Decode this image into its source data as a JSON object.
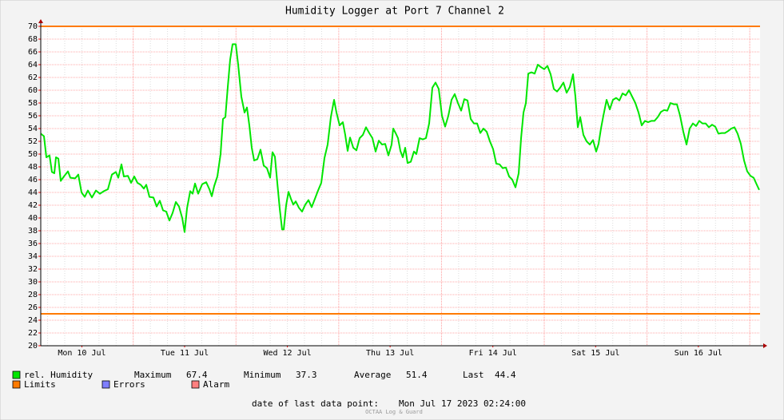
{
  "chart_data": {
    "type": "line",
    "title": "Humidity Logger at Port 7 Channel 2",
    "xlim": [
      2.4,
      170.4
    ],
    "xticks": [
      {
        "value": 12,
        "label": "Mon 10 Jul"
      },
      {
        "value": 36,
        "label": "Tue 11 Jul"
      },
      {
        "value": 60,
        "label": "Wed 12 Jul"
      },
      {
        "value": 84,
        "label": "Thu 13 Jul"
      },
      {
        "value": 108,
        "label": "Fri 14 Jul"
      },
      {
        "value": 132,
        "label": "Sat 15 Jul"
      },
      {
        "value": 156,
        "label": "Sun 16 Jul"
      }
    ],
    "xgrid_step": 24,
    "xminor_step": 4,
    "ylim": [
      20,
      70
    ],
    "yticks": [
      20,
      22,
      24,
      26,
      28,
      30,
      32,
      34,
      36,
      38,
      40,
      42,
      44,
      46,
      48,
      50,
      52,
      54,
      56,
      58,
      60,
      62,
      64,
      66,
      68,
      70
    ],
    "grid": true,
    "x": [
      2.4,
      3.15,
      3.71,
      4.45,
      5.01,
      5.57,
      5.95,
      6.51,
      7.07,
      7.81,
      8.75,
      9.31,
      10.43,
      11.17,
      11.92,
      12.67,
      13.41,
      14.35,
      15.29,
      16.22,
      17.15,
      18.08,
      19.02,
      19.95,
      20.51,
      21.25,
      21.81,
      22.75,
      23.49,
      24.24,
      24.99,
      25.73,
      26.48,
      27.04,
      27.79,
      28.72,
      29.47,
      30.21,
      30.96,
      31.71,
      32.45,
      33.2,
      33.95,
      34.69,
      35.44,
      36,
      36.56,
      37.31,
      37.87,
      38.43,
      39.17,
      40.11,
      41.04,
      41.79,
      42.35,
      42.91,
      43.65,
      44.4,
      44.96,
      45.52,
      46.08,
      46.64,
      47.2,
      47.95,
      48.51,
      49.25,
      50,
      50.56,
      51.12,
      51.68,
      52.24,
      52.99,
      53.73,
      54.48,
      55.23,
      55.97,
      56.53,
      57.09,
      57.65,
      58.21,
      58.77,
      59.15,
      59.71,
      60.27,
      60.83,
      61.39,
      61.95,
      62.7,
      63.44,
      64.19,
      64.93,
      65.68,
      66.43,
      67.17,
      67.92,
      68.67,
      69.41,
      70.16,
      70.91,
      71.47,
      72.21,
      72.96,
      73.52,
      74.08,
      74.64,
      75.39,
      76.13,
      76.88,
      77.63,
      78.37,
      79.12,
      79.87,
      80.61,
      81.36,
      82.11,
      82.85,
      83.6,
      84.35,
      84.72,
      85.28,
      85.84,
      86.4,
      86.96,
      87.52,
      88.08,
      88.83,
      89.57,
      90.13,
      90.88,
      91.63,
      92.37,
      93.12,
      93.87,
      94.61,
      95.36,
      96.11,
      96.85,
      97.6,
      98.35,
      99.09,
      99.84,
      100.59,
      101.33,
      102.08,
      102.83,
      103.57,
      104.32,
      105.07,
      105.81,
      106.56,
      107.31,
      108.05,
      108.8,
      109.55,
      110.29,
      111.04,
      111.79,
      112.53,
      113.28,
      114.03,
      114.59,
      115.15,
      115.71,
      116.27,
      117.01,
      117.76,
      118.51,
      119.25,
      120,
      120.75,
      121.49,
      122.24,
      122.99,
      123.73,
      124.48,
      125.23,
      125.97,
      126.72,
      127.28,
      127.84,
      128.4,
      129.15,
      129.89,
      130.64,
      131.39,
      132.13,
      132.69,
      133.25,
      133.81,
      134.56,
      135.31,
      136.05,
      136.8,
      137.55,
      138.29,
      139.04,
      139.79,
      140.53,
      141.28,
      142.03,
      142.77,
      143.52,
      144.27,
      145.01,
      145.76,
      146.51,
      147.25,
      148,
      148.75,
      149.49,
      150.24,
      150.99,
      151.73,
      152.48,
      153.23,
      153.97,
      154.72,
      155.47,
      156.21,
      156.96,
      157.71,
      158.45,
      159.2,
      159.95,
      160.69,
      161.44,
      162.19,
      162.93,
      163.68,
      164.43,
      165.17,
      165.92,
      166.67,
      167.41,
      168.16,
      168.91,
      169.65,
      170.21
    ],
    "series": [
      {
        "name": "rel. Humidity",
        "color": "#00e600",
        "values": [
          53.2,
          52.8,
          49.5,
          49.8,
          47.2,
          47,
          49.5,
          49.3,
          45.8,
          46.5,
          47.3,
          46.3,
          46.2,
          46.8,
          44,
          43.3,
          44.3,
          43.2,
          44.3,
          43.8,
          44.2,
          44.5,
          46.8,
          47.2,
          46.3,
          48.4,
          46.5,
          46.6,
          45.5,
          46.5,
          45.5,
          45.2,
          44.6,
          45.2,
          43.3,
          43.2,
          41.8,
          42.7,
          41.2,
          41,
          39.6,
          40.8,
          42.5,
          41.8,
          40,
          37.8,
          41.5,
          44.2,
          43.8,
          45.4,
          43.8,
          45.3,
          45.6,
          44.5,
          43.4,
          45,
          46.5,
          50,
          55.5,
          55.8,
          60.5,
          64.8,
          67.2,
          67.2,
          64,
          59,
          56.5,
          57.3,
          54.5,
          51,
          49,
          49.2,
          50.7,
          48.2,
          47.8,
          46.3,
          50.3,
          49.6,
          45.5,
          41.5,
          38.2,
          38.2,
          42,
          44.1,
          43,
          42.1,
          42.6,
          41.6,
          41,
          42.1,
          42.8,
          41.7,
          43,
          44.3,
          45.5,
          49.4,
          51.5,
          55.8,
          58.5,
          56.5,
          54.5,
          55,
          53,
          50.5,
          52.6,
          51,
          50.6,
          52.5,
          53,
          54.2,
          53.3,
          52.5,
          50.4,
          52.1,
          51.5,
          51.6,
          49.8,
          51.5,
          54,
          53.3,
          52.5,
          50.5,
          49.5,
          51,
          48.6,
          48.8,
          50.4,
          50,
          52.5,
          52.3,
          52.5,
          54.8,
          60.4,
          61.2,
          60.2,
          56,
          54.3,
          56,
          58.5,
          59.4,
          58,
          56.8,
          58.6,
          58.4,
          55.5,
          54.8,
          54.8,
          53.3,
          54,
          53.5,
          52,
          50.8,
          48.5,
          48.4,
          47.8,
          47.9,
          46.5,
          46,
          44.8,
          47,
          52.5,
          56.5,
          58,
          62.6,
          62.8,
          62.6,
          64,
          63.6,
          63.3,
          63.8,
          62.5,
          60.2,
          59.8,
          60.4,
          61.2,
          59.6,
          60.5,
          62.5,
          59,
          54.2,
          55.8,
          53,
          52,
          51.5,
          52.2,
          50.4,
          51.6,
          54,
          56,
          58.5,
          57,
          58.5,
          58.8,
          58.4,
          59.5,
          59.2,
          60,
          59,
          58,
          56.5,
          54.5,
          55.2,
          55,
          55.2,
          55.2,
          55.8,
          56.6,
          56.9,
          56.8,
          58,
          57.8,
          57.8,
          56,
          53.5,
          51.5,
          54,
          54.8,
          54.4,
          55.2,
          54.8,
          54.8,
          54.2,
          54.6,
          54.3,
          53.2,
          53.3,
          53.3,
          53.6,
          54,
          54.2,
          53.2,
          51.6,
          49,
          47.3,
          46.6,
          46.3,
          45.2,
          44.4
        ]
      }
    ],
    "stats": [
      {
        "label": "Maximum",
        "value": 67.4
      },
      {
        "label": "Minimum",
        "value": 37.3
      },
      {
        "label": "Average",
        "value": 51.4
      },
      {
        "label": "Last",
        "value": 44.4
      }
    ],
    "limits": {
      "name": "Limits",
      "color": "#ff7a00",
      "values": [
        70,
        25
      ]
    },
    "extra_legend": [
      {
        "name": "Errors",
        "color": "#7f7fff"
      },
      {
        "name": "Alarm",
        "color": "#ff7f7f"
      }
    ],
    "footer_label": "date of last data point:",
    "footer_value": "Mon Jul 17 2023 02:24:00",
    "credit": "OCTAA Log & Guard"
  }
}
